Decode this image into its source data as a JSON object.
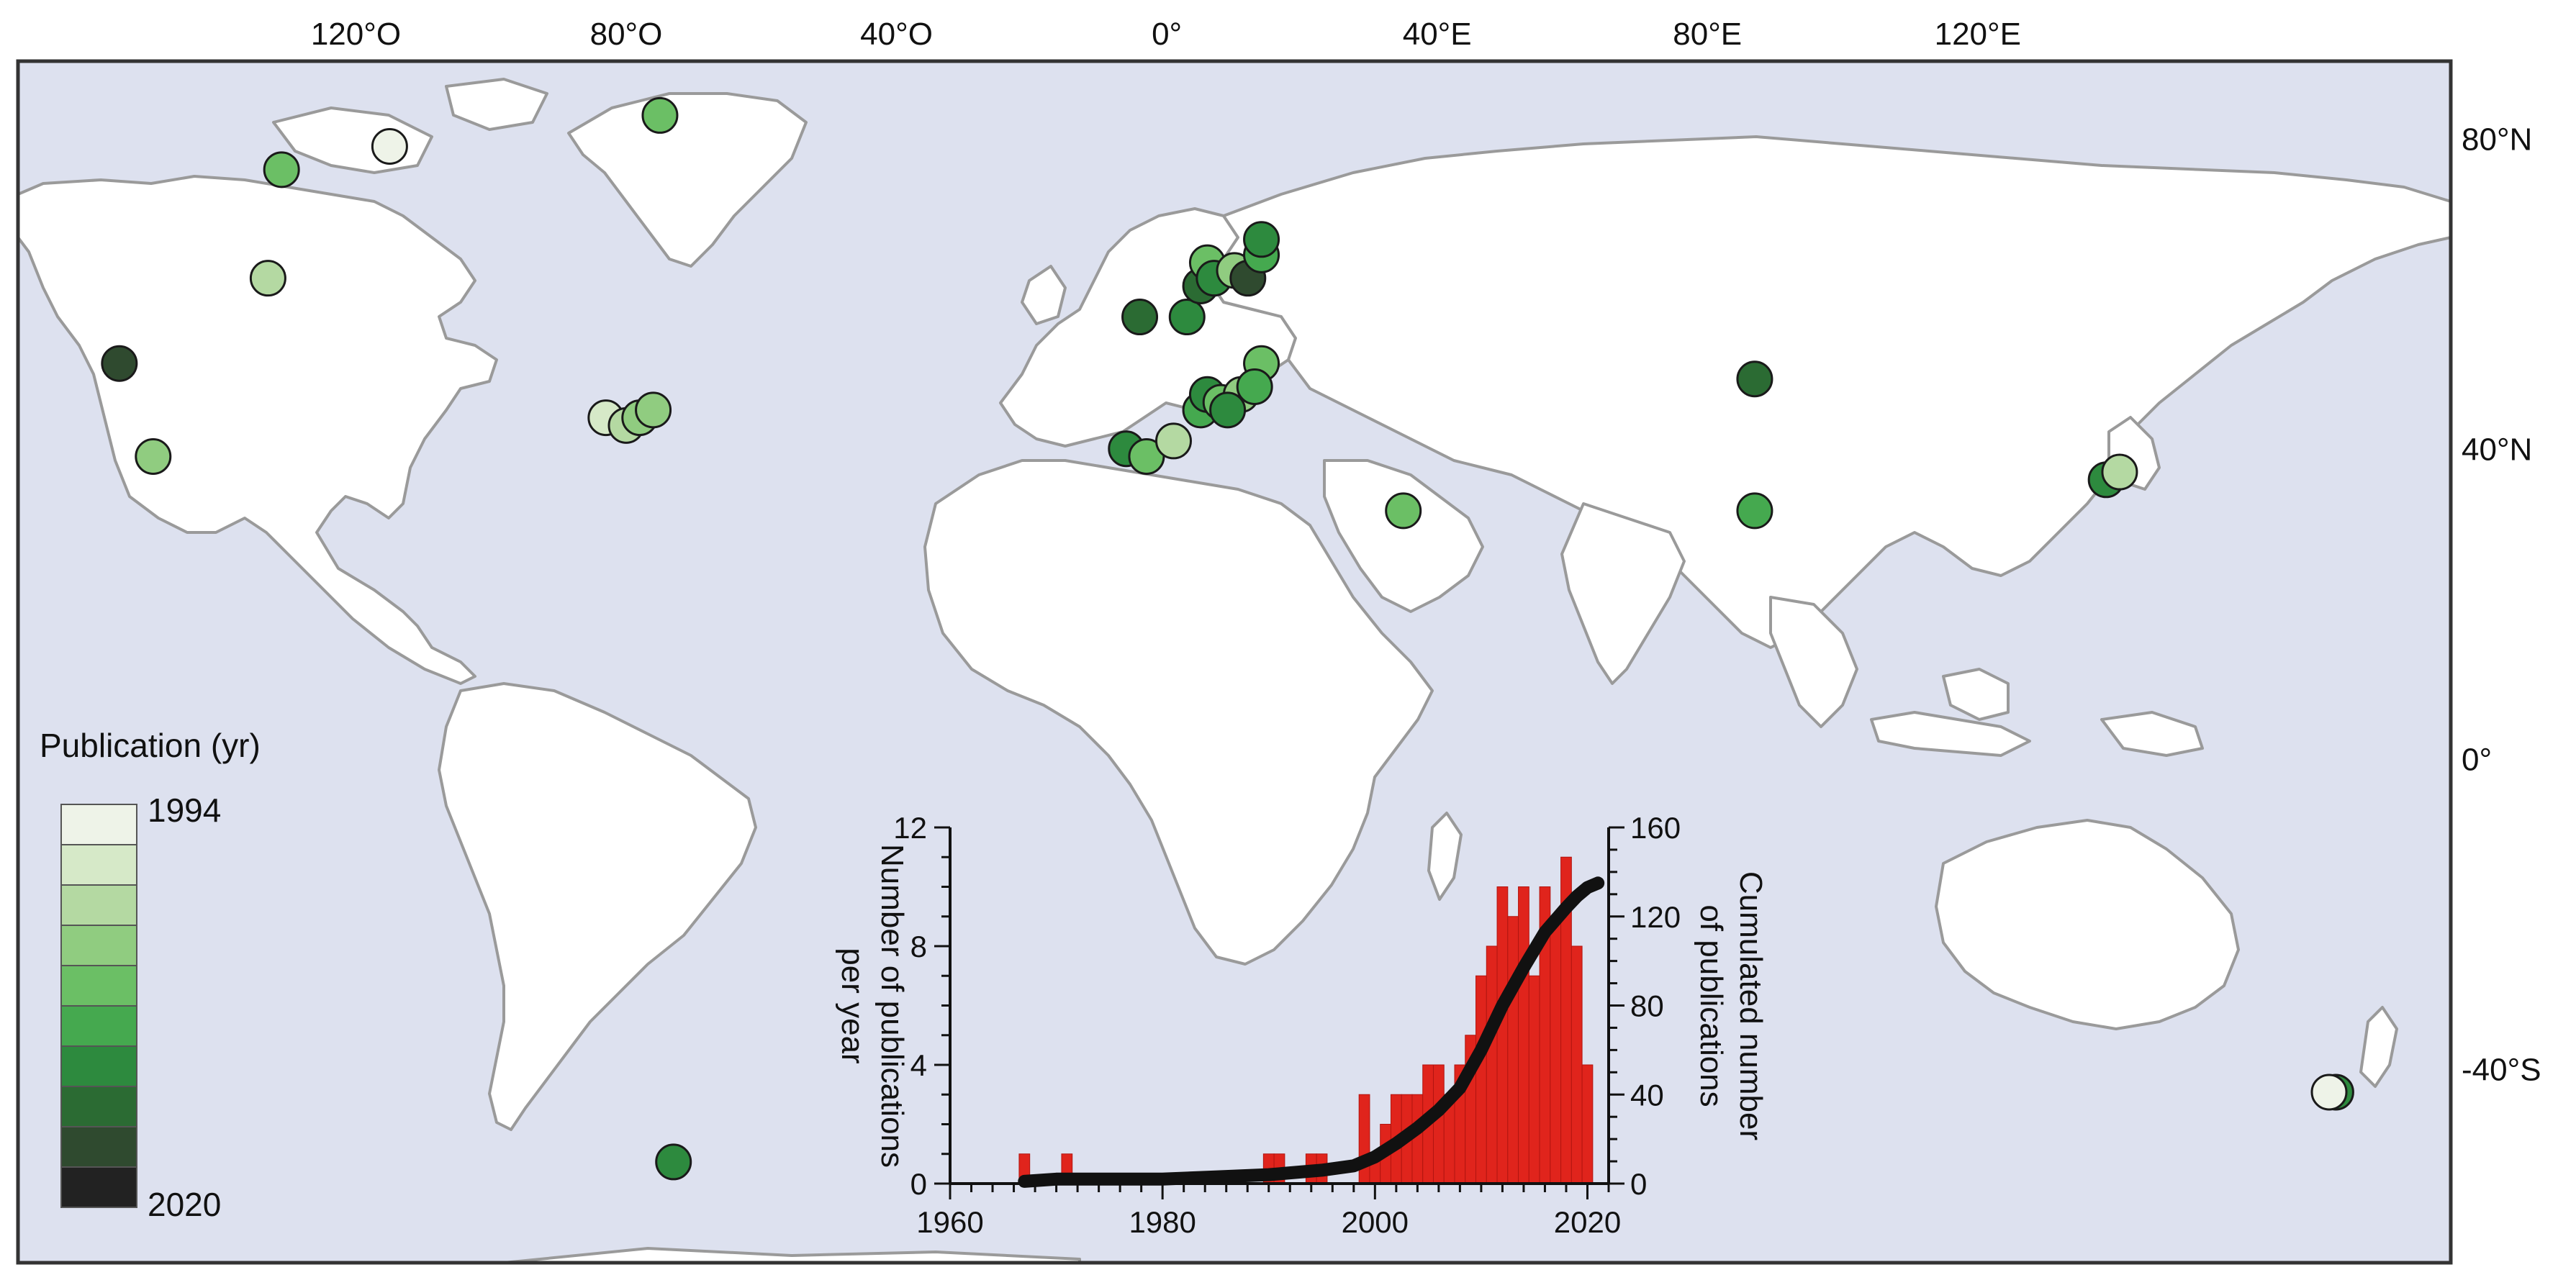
{
  "map": {
    "lon_labels": [
      {
        "lon": -120,
        "label": "120°O"
      },
      {
        "lon": -80,
        "label": "80°O"
      },
      {
        "lon": -40,
        "label": "40°O"
      },
      {
        "lon": 0,
        "label": "0°"
      },
      {
        "lon": 40,
        "label": "40°E"
      },
      {
        "lon": 80,
        "label": "80°E"
      },
      {
        "lon": 120,
        "label": "120°E"
      }
    ],
    "lat_labels": [
      {
        "lat": 80,
        "label": "80°N"
      },
      {
        "lat": 40,
        "label": "40°N"
      },
      {
        "lat": 0,
        "label": "0°"
      },
      {
        "lat": -40,
        "label": "-40°S"
      }
    ],
    "colors": {
      "ocean": "#dde1ef",
      "land": "#ffffff",
      "coast": "#9a9a9a"
    },
    "sites": [
      {
        "lon": -131,
        "lat": 76,
        "year": 2006
      },
      {
        "lon": -115,
        "lat": 79,
        "year": 1995
      },
      {
        "lon": -75,
        "lat": 83,
        "year": 2005
      },
      {
        "lon": -133,
        "lat": 62,
        "year": 2001
      },
      {
        "lon": -155,
        "lat": 51,
        "year": 2016
      },
      {
        "lon": -150,
        "lat": 39,
        "year": 2003
      },
      {
        "lon": -83,
        "lat": 44,
        "year": 1997
      },
      {
        "lon": -80,
        "lat": 43,
        "year": 2000
      },
      {
        "lon": -78,
        "lat": 44,
        "year": 2004
      },
      {
        "lon": -76,
        "lat": 45,
        "year": 2003
      },
      {
        "lon": -73,
        "lat": -52,
        "year": 2010
      },
      {
        "lon": -4,
        "lat": 57,
        "year": 2014
      },
      {
        "lon": 3,
        "lat": 57,
        "year": 2012
      },
      {
        "lon": 5,
        "lat": 61,
        "year": 2013
      },
      {
        "lon": 6,
        "lat": 64,
        "year": 2005
      },
      {
        "lon": 7,
        "lat": 62,
        "year": 2010
      },
      {
        "lon": 10,
        "lat": 63,
        "year": 2003
      },
      {
        "lon": 12,
        "lat": 62,
        "year": 2016
      },
      {
        "lon": 14,
        "lat": 65,
        "year": 2007
      },
      {
        "lon": 14,
        "lat": 67,
        "year": 2012
      },
      {
        "lon": 14,
        "lat": 51,
        "year": 2005
      },
      {
        "lon": -6,
        "lat": 40,
        "year": 2010
      },
      {
        "lon": -3,
        "lat": 39,
        "year": 2005
      },
      {
        "lon": 1,
        "lat": 41,
        "year": 2001
      },
      {
        "lon": 5,
        "lat": 45,
        "year": 2009
      },
      {
        "lon": 6,
        "lat": 47,
        "year": 2011
      },
      {
        "lon": 8,
        "lat": 46,
        "year": 2006
      },
      {
        "lon": 11,
        "lat": 47,
        "year": 2002
      },
      {
        "lon": 13,
        "lat": 48,
        "year": 2008
      },
      {
        "lon": 9,
        "lat": 45,
        "year": 2012
      },
      {
        "lon": 35,
        "lat": 32,
        "year": 2006
      },
      {
        "lon": 87,
        "lat": 49,
        "year": 2015
      },
      {
        "lon": 87,
        "lat": 32,
        "year": 2008
      },
      {
        "lon": 139,
        "lat": 36,
        "year": 2012
      },
      {
        "lon": 141,
        "lat": 37,
        "year": 2001
      },
      {
        "lon": 173,
        "lat": -43,
        "year": 2011
      },
      {
        "lon": 172,
        "lat": -43,
        "year": 1994
      }
    ]
  },
  "legend": {
    "title": "Publication (yr)",
    "min_label": "1994",
    "max_label": "2020",
    "colors": [
      "#eef3e8",
      "#d6e9c8",
      "#b4d9a2",
      "#90cc80",
      "#6bbf65",
      "#45a94f",
      "#2d8a3e",
      "#2b6b33",
      "#2f4a2f",
      "#222222"
    ]
  },
  "chart_data": {
    "type": "bar",
    "x": [
      1967,
      1971,
      1990,
      1991,
      1994,
      1995,
      1999,
      2000,
      2001,
      2002,
      2003,
      2004,
      2005,
      2006,
      2007,
      2008,
      2009,
      2010,
      2011,
      2012,
      2013,
      2014,
      2015,
      2016,
      2017,
      2018,
      2019,
      2020
    ],
    "values": [
      1,
      1,
      1,
      1,
      1,
      1,
      3,
      1,
      2,
      3,
      3,
      3,
      4,
      4,
      3,
      4,
      5,
      7,
      8,
      10,
      9,
      10,
      7,
      10,
      9,
      11,
      8,
      4
    ],
    "cumulative": {
      "x": [
        1967,
        1970,
        1975,
        1980,
        1985,
        1990,
        1995,
        1998,
        2000,
        2002,
        2004,
        2006,
        2008,
        2010,
        2012,
        2014,
        2016,
        2018,
        2019,
        2020,
        2021
      ],
      "values": [
        1,
        2,
        2,
        2,
        3,
        4,
        6,
        8,
        12,
        18,
        25,
        33,
        43,
        60,
        80,
        97,
        113,
        124,
        129,
        133,
        135
      ]
    },
    "xlim": [
      1960,
      2022
    ],
    "x_ticks": [
      1960,
      1980,
      2000,
      2020
    ],
    "ylim": [
      0,
      12
    ],
    "y_ticks": [
      0,
      4,
      8,
      12
    ],
    "y2lim": [
      0,
      160
    ],
    "y2_ticks": [
      0,
      40,
      80,
      120,
      160
    ],
    "ylabel_line1": "Number of publications",
    "ylabel_line2": "per year",
    "y2label_line1": "Cumulated number",
    "y2label_line2": "of publications",
    "bar_color": "#e0241c",
    "line_color": "#111111"
  }
}
